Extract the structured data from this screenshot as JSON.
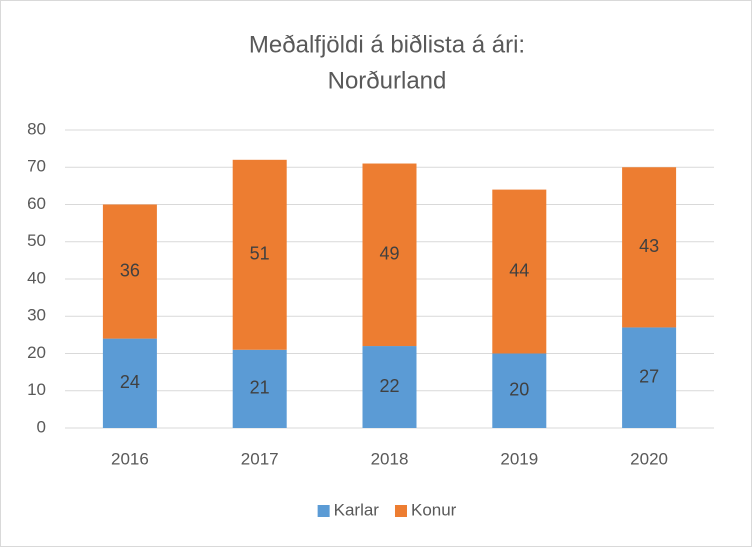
{
  "chart_data": {
    "type": "bar",
    "stacked": true,
    "title": [
      "Meðalfjöldi á biðlista á ári:",
      "Norðurland"
    ],
    "categories": [
      "2016",
      "2017",
      "2018",
      "2019",
      "2020"
    ],
    "series": [
      {
        "name": "Karlar",
        "color": "#5b9bd5",
        "values": [
          24,
          21,
          22,
          20,
          27
        ]
      },
      {
        "name": "Konur",
        "color": "#ed7d31",
        "values": [
          36,
          51,
          49,
          44,
          43
        ]
      }
    ],
    "ylim": [
      0,
      80
    ],
    "yticks": [
      0,
      10,
      20,
      30,
      40,
      50,
      60,
      70,
      80
    ],
    "grid": true,
    "legend": "bottom"
  }
}
